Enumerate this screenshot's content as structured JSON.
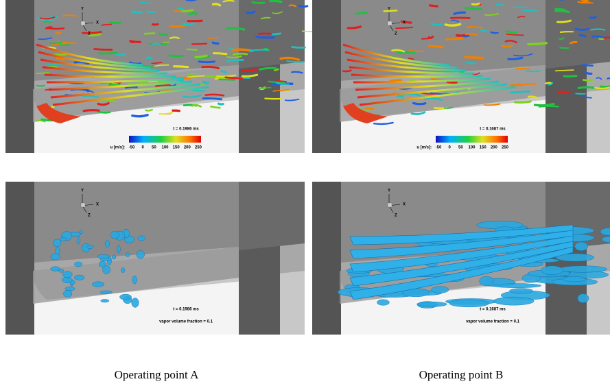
{
  "panels": [
    {
      "axes": [
        "Y",
        "X",
        "Z"
      ],
      "time": "t = 0.1986 ms",
      "colorbar": {
        "label": "u [m/s]:",
        "ticks": [
          -50,
          0,
          50,
          100,
          150,
          200,
          250
        ]
      }
    },
    {
      "axes": [
        "Y",
        "X",
        "Z"
      ],
      "time": "t = 0.1687 ms",
      "colorbar": {
        "label": "u [m/s]:",
        "ticks": [
          -50,
          0,
          50,
          100,
          150,
          200,
          250
        ]
      }
    },
    {
      "axes": [
        "Y",
        "X",
        "Z"
      ],
      "time": "t = 0.1986 ms",
      "note": "vapor volume fraction = 0.1"
    },
    {
      "axes": [
        "Y",
        "X",
        "Z"
      ],
      "time": "t = 0.1687 ms",
      "note": "vapor volume fraction = 0.1"
    }
  ],
  "captions": [
    "Operating point A",
    "Operating point B"
  ]
}
